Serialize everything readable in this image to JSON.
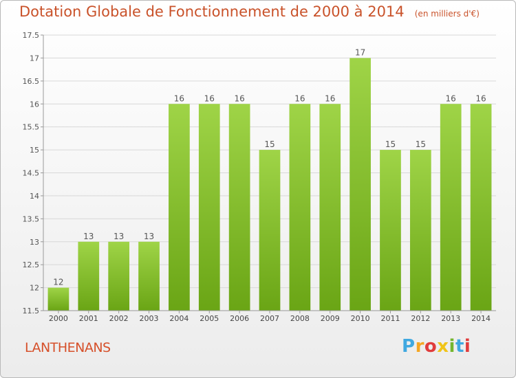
{
  "title": "Dotation Globale de Fonctionnement de 2000 à 2014",
  "unit_note": "(en milliers d'€)",
  "commune": "LANTHENANS",
  "logo": {
    "text": "Proxiti",
    "colors": [
      "#3fa8e0",
      "#f5a623",
      "#e03c3c",
      "#f0c419",
      "#74b62e",
      "#3fa8e0",
      "#e03c3c"
    ]
  },
  "colors": {
    "bar_light": "#9fd447",
    "bar_dark": "#6aa515",
    "title": "#c9522a",
    "grid": "#d8d8d8"
  },
  "chart_data": {
    "type": "bar",
    "title": "Dotation Globale de Fonctionnement de 2000 à 2014",
    "subtitle": "(en milliers d'€)",
    "xlabel": "",
    "ylabel": "",
    "categories": [
      "2000",
      "2001",
      "2002",
      "2003",
      "2004",
      "2005",
      "2006",
      "2007",
      "2008",
      "2009",
      "2010",
      "2011",
      "2012",
      "2013",
      "2014"
    ],
    "values": [
      12,
      13,
      13,
      13,
      16,
      16,
      16,
      15,
      16,
      16,
      17,
      15,
      15,
      16,
      16
    ],
    "ylim": [
      11.5,
      17.5
    ],
    "yticks": [
      "11.5",
      "12",
      "12.5",
      "13",
      "13.5",
      "14",
      "14.5",
      "15",
      "15.5",
      "16",
      "16.5",
      "17",
      "17.5"
    ],
    "grid": true,
    "legend": "none"
  }
}
